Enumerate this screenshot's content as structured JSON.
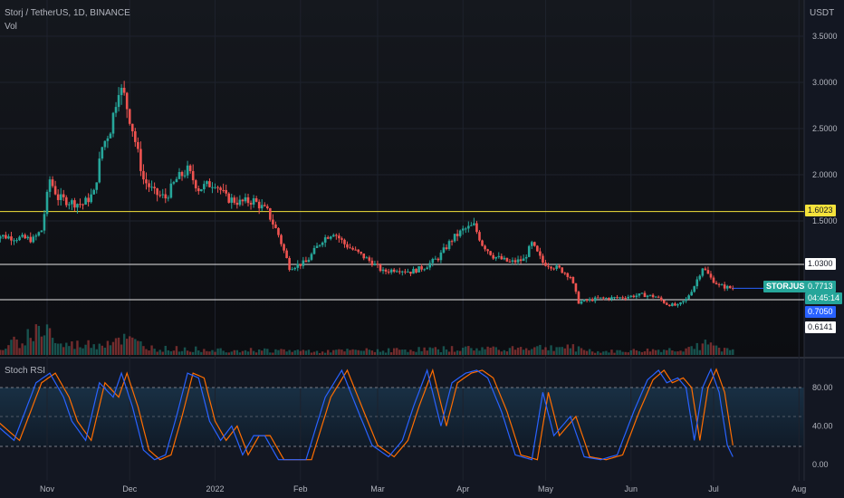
{
  "header": {
    "symbol_line": "Storj / TetherUS, 1D, BINANCE",
    "volume_label": "Vol",
    "indicator_label": "Stoch RSI",
    "currency_label": "USDT"
  },
  "price_axis": {
    "ticks": [
      {
        "label": "3.5000",
        "value": 3.5
      },
      {
        "label": "3.0000",
        "value": 3.0
      },
      {
        "label": "2.5000",
        "value": 2.5
      },
      {
        "label": "2.0000",
        "value": 2.0
      },
      {
        "label": "1.5000",
        "value": 1.5
      }
    ]
  },
  "rsi_axis": {
    "ticks": [
      {
        "label": "80.00",
        "value": 80
      },
      {
        "label": "40.00",
        "value": 40
      },
      {
        "label": "0.00",
        "value": 0
      }
    ]
  },
  "time_axis": {
    "labels": [
      {
        "label": "Nov",
        "date": "2021-11-01"
      },
      {
        "label": "Dec",
        "date": "2021-12-01"
      },
      {
        "label": "2022",
        "date": "2022-01-01"
      },
      {
        "label": "Feb",
        "date": "2022-02-01"
      },
      {
        "label": "Mar",
        "date": "2022-03-01"
      },
      {
        "label": "Apr",
        "date": "2022-04-01"
      },
      {
        "label": "May",
        "date": "2022-05-01"
      },
      {
        "label": "Jun",
        "date": "2022-06-01"
      },
      {
        "label": "Jul",
        "date": "2022-07-01"
      },
      {
        "label": "Aug",
        "date": "2022-08-01"
      }
    ]
  },
  "levels": [
    {
      "value": 1.6023,
      "label": "1.6023",
      "color": "#f5e23b"
    },
    {
      "value": 1.03,
      "label": "1.0300",
      "color": "#e6e6e6"
    },
    {
      "value": 0.6141,
      "label": "0.6141",
      "color": "#e6e6e6"
    }
  ],
  "price_tags": {
    "symbol": "STORJUSDT",
    "last_price": "0.7713",
    "countdown": "04:45:14",
    "level_tag": "0.7050"
  },
  "colors": {
    "background": "#131722",
    "up": "#26a69a",
    "down": "#ef5350",
    "stoch_k": "#2962ff",
    "stoch_d": "#ff6d00",
    "level_yellow": "#f5e23b",
    "level_white": "#e6e6e6",
    "axis_text": "#b2b5be"
  },
  "chart_data": {
    "type": "candlestick",
    "symbol": "Storj / TetherUS",
    "interval": "1D",
    "exchange": "BINANCE",
    "price_path": [
      [
        "2021-10-12",
        1.35
      ],
      [
        "2021-10-20",
        1.32
      ],
      [
        "2021-10-27",
        1.3
      ],
      [
        "2021-10-30",
        1.4
      ],
      [
        "2021-11-02",
        1.95
      ],
      [
        "2021-11-05",
        1.75
      ],
      [
        "2021-11-10",
        1.7
      ],
      [
        "2021-11-14",
        1.68
      ],
      [
        "2021-11-18",
        1.8
      ],
      [
        "2021-11-21",
        2.3
      ],
      [
        "2021-11-24",
        2.5
      ],
      [
        "2021-11-27",
        2.95
      ],
      [
        "2021-11-29",
        2.85
      ],
      [
        "2021-12-02",
        2.5
      ],
      [
        "2021-12-06",
        1.95
      ],
      [
        "2021-12-10",
        1.8
      ],
      [
        "2021-12-14",
        1.75
      ],
      [
        "2021-12-18",
        1.95
      ],
      [
        "2021-12-22",
        2.05
      ],
      [
        "2021-12-26",
        1.85
      ],
      [
        "2022-01-01",
        1.92
      ],
      [
        "2022-01-05",
        1.75
      ],
      [
        "2022-01-10",
        1.7
      ],
      [
        "2022-01-15",
        1.72
      ],
      [
        "2022-01-20",
        1.6
      ],
      [
        "2022-01-24",
        1.35
      ],
      [
        "2022-01-28",
        1.0
      ],
      [
        "2022-02-03",
        1.05
      ],
      [
        "2022-02-09",
        1.3
      ],
      [
        "2022-02-13",
        1.38
      ],
      [
        "2022-02-17",
        1.25
      ],
      [
        "2022-02-22",
        1.15
      ],
      [
        "2022-02-27",
        1.05
      ],
      [
        "2022-03-03",
        0.95
      ],
      [
        "2022-03-08",
        0.98
      ],
      [
        "2022-03-13",
        0.95
      ],
      [
        "2022-03-18",
        1.0
      ],
      [
        "2022-03-23",
        1.1
      ],
      [
        "2022-03-28",
        1.3
      ],
      [
        "2022-04-01",
        1.4
      ],
      [
        "2022-04-05",
        1.45
      ],
      [
        "2022-04-08",
        1.25
      ],
      [
        "2022-04-12",
        1.12
      ],
      [
        "2022-04-18",
        1.05
      ],
      [
        "2022-04-23",
        1.08
      ],
      [
        "2022-04-26",
        1.25
      ],
      [
        "2022-04-30",
        1.05
      ],
      [
        "2022-05-06",
        0.98
      ],
      [
        "2022-05-10",
        0.9
      ],
      [
        "2022-05-13",
        0.62
      ],
      [
        "2022-05-20",
        0.66
      ],
      [
        "2022-05-28",
        0.67
      ],
      [
        "2022-06-05",
        0.7
      ],
      [
        "2022-06-10",
        0.68
      ],
      [
        "2022-06-14",
        0.6
      ],
      [
        "2022-06-18",
        0.58
      ],
      [
        "2022-06-21",
        0.65
      ],
      [
        "2022-06-24",
        0.8
      ],
      [
        "2022-06-27",
        1.0
      ],
      [
        "2022-06-30",
        0.88
      ],
      [
        "2022-07-03",
        0.8
      ],
      [
        "2022-07-06",
        0.78
      ],
      [
        "2022-07-08",
        0.77
      ]
    ],
    "volume_path": [
      [
        "2021-10-12",
        0.05
      ],
      [
        "2021-11-01",
        0.9
      ],
      [
        "2021-11-05",
        0.3
      ],
      [
        "2021-11-20",
        0.35
      ],
      [
        "2021-11-27",
        0.55
      ],
      [
        "2021-12-10",
        0.2
      ],
      [
        "2022-01-20",
        0.15
      ],
      [
        "2022-02-10",
        0.12
      ],
      [
        "2022-04-01",
        0.2
      ],
      [
        "2022-05-10",
        0.25
      ],
      [
        "2022-05-20",
        0.1
      ],
      [
        "2022-06-20",
        0.18
      ],
      [
        "2022-06-27",
        0.35
      ],
      [
        "2022-07-08",
        0.12
      ]
    ],
    "stoch_k": [
      [
        "2021-10-12",
        45
      ],
      [
        "2021-10-20",
        25
      ],
      [
        "2021-10-28",
        85
      ],
      [
        "2021-11-02",
        95
      ],
      [
        "2021-11-07",
        70
      ],
      [
        "2021-11-10",
        45
      ],
      [
        "2021-11-15",
        25
      ],
      [
        "2021-11-20",
        85
      ],
      [
        "2021-11-25",
        70
      ],
      [
        "2021-11-28",
        95
      ],
      [
        "2021-12-02",
        60
      ],
      [
        "2021-12-06",
        15
      ],
      [
        "2021-12-10",
        5
      ],
      [
        "2021-12-14",
        10
      ],
      [
        "2021-12-18",
        50
      ],
      [
        "2021-12-22",
        95
      ],
      [
        "2021-12-26",
        90
      ],
      [
        "2021-12-30",
        45
      ],
      [
        "2022-01-03",
        25
      ],
      [
        "2022-01-07",
        40
      ],
      [
        "2022-01-11",
        10
      ],
      [
        "2022-01-15",
        30
      ],
      [
        "2022-01-19",
        30
      ],
      [
        "2022-01-24",
        5
      ],
      [
        "2022-02-03",
        5
      ],
      [
        "2022-02-10",
        70
      ],
      [
        "2022-02-16",
        98
      ],
      [
        "2022-02-22",
        55
      ],
      [
        "2022-02-27",
        20
      ],
      [
        "2022-03-05",
        8
      ],
      [
        "2022-03-10",
        25
      ],
      [
        "2022-03-14",
        60
      ],
      [
        "2022-03-19",
        98
      ],
      [
        "2022-03-24",
        40
      ],
      [
        "2022-03-28",
        85
      ],
      [
        "2022-04-02",
        95
      ],
      [
        "2022-04-06",
        98
      ],
      [
        "2022-04-10",
        90
      ],
      [
        "2022-04-15",
        55
      ],
      [
        "2022-04-20",
        10
      ],
      [
        "2022-04-26",
        5
      ],
      [
        "2022-04-30",
        75
      ],
      [
        "2022-05-04",
        30
      ],
      [
        "2022-05-10",
        50
      ],
      [
        "2022-05-15",
        8
      ],
      [
        "2022-05-21",
        5
      ],
      [
        "2022-05-27",
        10
      ],
      [
        "2022-06-02",
        55
      ],
      [
        "2022-06-07",
        88
      ],
      [
        "2022-06-11",
        98
      ],
      [
        "2022-06-14",
        85
      ],
      [
        "2022-06-18",
        90
      ],
      [
        "2022-06-21",
        80
      ],
      [
        "2022-06-24",
        25
      ],
      [
        "2022-06-27",
        80
      ],
      [
        "2022-06-30",
        99
      ],
      [
        "2022-07-03",
        75
      ],
      [
        "2022-07-06",
        20
      ],
      [
        "2022-07-08",
        8
      ]
    ],
    "stoch_rsi_lines": [
      "%K",
      "%D"
    ],
    "rsi_bands": [
      80,
      50,
      20
    ]
  }
}
